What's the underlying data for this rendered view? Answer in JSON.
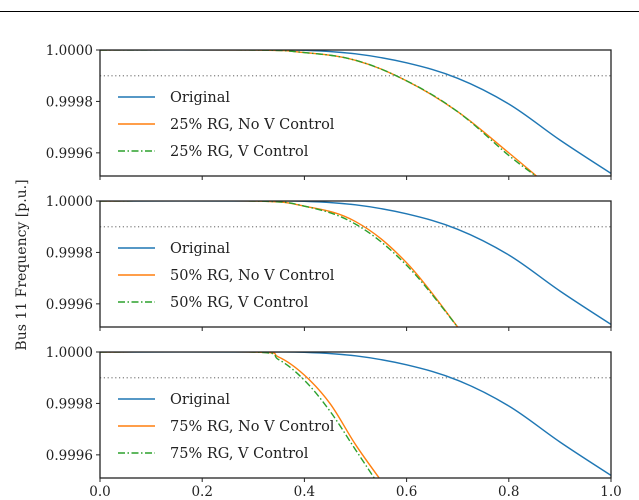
{
  "chart_data": {
    "type": "line",
    "ylabel": "Bus 11 Frequency [p.u.]",
    "xlim": [
      0.0,
      1.0
    ],
    "ylim": [
      0.99951,
      1.0
    ],
    "x_ticks": [
      "0.0",
      "0.2",
      "0.4",
      "0.6",
      "0.8",
      "1.0"
    ],
    "y_ticks": [
      {
        "value": 1.0,
        "label": "1.0000"
      },
      {
        "value": 0.9998,
        "label": "0.9998"
      },
      {
        "value": 0.9996,
        "label": "0.9996"
      }
    ],
    "reference_line": 0.9999,
    "grid": false,
    "legend_position": "lower-left",
    "colors": {
      "original": "#1f77b4",
      "no_v": "#ff7f0e",
      "v_control": "#2ca02c",
      "reference": "#808080"
    },
    "panels": [
      {
        "series": [
          {
            "name": "Original",
            "style": "solid",
            "color": "#1f77b4",
            "x": [
              0.0,
              0.3,
              0.4,
              0.5,
              0.6,
              0.7,
              0.8,
              0.9,
              1.0
            ],
            "y": [
              1.0,
              1.0,
              0.999999,
              0.999985,
              0.99995,
              0.99989,
              0.99979,
              0.99965,
              0.99952
            ]
          },
          {
            "name": "25% RG, No V Control",
            "style": "solid",
            "color": "#ff7f0e",
            "x": [
              0.0,
              0.3,
              0.4,
              0.5,
              0.6,
              0.7,
              0.8,
              0.86
            ],
            "y": [
              1.0,
              1.0,
              0.99999,
              0.99996,
              0.99988,
              0.99976,
              0.9996,
              0.9995
            ]
          },
          {
            "name": "25% RG, V Control",
            "style": "dashdot",
            "color": "#2ca02c",
            "x": [
              0.0,
              0.3,
              0.4,
              0.5,
              0.6,
              0.7,
              0.8,
              0.86
            ],
            "y": [
              1.0,
              1.0,
              0.99999,
              0.99996,
              0.99988,
              0.99976,
              0.99959,
              0.9995
            ]
          }
        ]
      },
      {
        "series": [
          {
            "name": "Original",
            "style": "solid",
            "color": "#1f77b4",
            "x": [
              0.0,
              0.3,
              0.4,
              0.5,
              0.6,
              0.7,
              0.8,
              0.9,
              1.0
            ],
            "y": [
              1.0,
              1.0,
              0.999999,
              0.999985,
              0.99995,
              0.99989,
              0.99979,
              0.99965,
              0.99952
            ]
          },
          {
            "name": "50% RG, No V Control",
            "style": "solid",
            "color": "#ff7f0e",
            "x": [
              0.0,
              0.3,
              0.4,
              0.5,
              0.6,
              0.7
            ],
            "y": [
              1.0,
              1.0,
              0.99998,
              0.99992,
              0.99976,
              0.99951
            ]
          },
          {
            "name": "50% RG, V Control",
            "style": "dashdot",
            "color": "#2ca02c",
            "x": [
              0.0,
              0.3,
              0.4,
              0.5,
              0.6,
              0.7
            ],
            "y": [
              1.0,
              1.0,
              0.99998,
              0.99991,
              0.99975,
              0.99951
            ]
          }
        ]
      },
      {
        "series": [
          {
            "name": "Original",
            "style": "solid",
            "color": "#1f77b4",
            "x": [
              0.0,
              0.3,
              0.4,
              0.5,
              0.6,
              0.7,
              0.8,
              0.9,
              1.0
            ],
            "y": [
              1.0,
              1.0,
              0.999999,
              0.999985,
              0.99995,
              0.99989,
              0.99979,
              0.99965,
              0.99952
            ]
          },
          {
            "name": "75% RG, No V Control",
            "style": "solid",
            "color": "#ff7f0e",
            "x": [
              0.0,
              0.3,
              0.35,
              0.4,
              0.45,
              0.5,
              0.55
            ],
            "y": [
              1.0,
              1.0,
              0.99998,
              0.99991,
              0.9998,
              0.99964,
              0.9995
            ]
          },
          {
            "name": "75% RG, V Control",
            "style": "dashdot",
            "color": "#2ca02c",
            "x": [
              0.0,
              0.3,
              0.35,
              0.4,
              0.45,
              0.5,
              0.54
            ],
            "y": [
              1.0,
              1.0,
              0.99997,
              0.99989,
              0.99977,
              0.99962,
              0.9995
            ]
          }
        ]
      }
    ]
  }
}
